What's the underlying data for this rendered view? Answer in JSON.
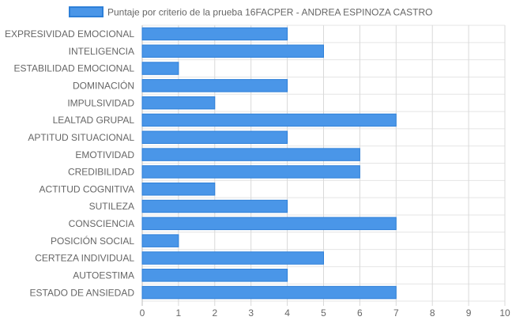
{
  "chart_data": {
    "type": "bar",
    "orientation": "horizontal",
    "legend_position": "top",
    "grid": true,
    "categories": [
      "EXPRESIVIDAD EMOCIONAL",
      "INTELIGENCIA",
      "ESTABILIDAD EMOCIONAL",
      "DOMINACIÓN",
      "IMPULSIVIDAD",
      "LEALTAD GRUPAL",
      "APTITUD SITUACIONAL",
      "EMOTIVIDAD",
      "CREDIBILIDAD",
      "ACTITUD COGNITIVA",
      "SUTILEZA",
      "CONSCIENCIA",
      "POSICIÓN SOCIAL",
      "CERTEZA INDIVIDUAL",
      "AUTOESTIMA",
      "ESTADO DE ANSIEDAD"
    ],
    "series": [
      {
        "name": "Puntaje por criterio de la prueba 16FACPER - ANDREA ESPINOZA CASTRO",
        "values": [
          4,
          5,
          1,
          4,
          2,
          7,
          4,
          6,
          6,
          2,
          4,
          7,
          1,
          5,
          4,
          7
        ],
        "color": "#4a96e8",
        "border_color": "#2d7fd8"
      }
    ],
    "xlim": [
      0,
      10
    ],
    "xticks": [
      "0",
      "1",
      "2",
      "3",
      "4",
      "5",
      "6",
      "7",
      "8",
      "9",
      "10"
    ],
    "xlabel": "",
    "ylabel": ""
  }
}
